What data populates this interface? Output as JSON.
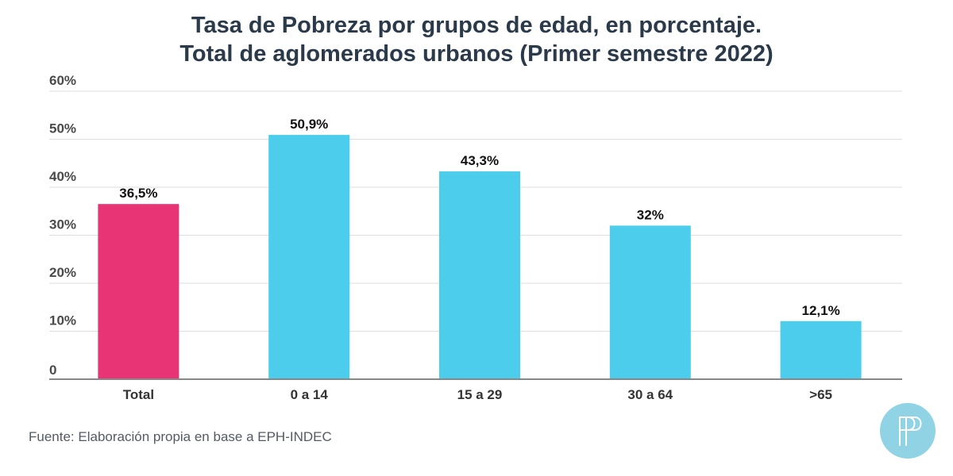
{
  "chart_data": {
    "type": "bar",
    "title": "Tasa de Pobreza por grupos de edad, en porcentaje.",
    "subtitle": "Total de aglomerados urbanos (Primer semestre 2022)",
    "categories": [
      "Total",
      "0 a 14",
      "15 a 29",
      "30 a 64",
      ">65"
    ],
    "values": [
      36.5,
      50.9,
      43.3,
      32,
      12.1
    ],
    "data_labels": [
      "36,5%",
      "50,9%",
      "43,3%",
      "32%",
      "12,1%"
    ],
    "colors": [
      "#e83375",
      "#4ccdeb",
      "#4ccdeb",
      "#4ccdeb",
      "#4ccdeb"
    ],
    "ylim": [
      0,
      60
    ],
    "yticks": [
      0,
      10,
      20,
      30,
      40,
      50,
      60
    ],
    "ytick_labels": [
      "0",
      "10%",
      "20%",
      "30%",
      "40%",
      "50%",
      "60%"
    ],
    "grid": true,
    "legend": "none"
  },
  "footer": {
    "source": "Fuente: Elaboración propia en base a EPH-INDEC"
  },
  "logo": {
    "icon": "pp-logo-icon",
    "color": "#8fd3e4"
  }
}
